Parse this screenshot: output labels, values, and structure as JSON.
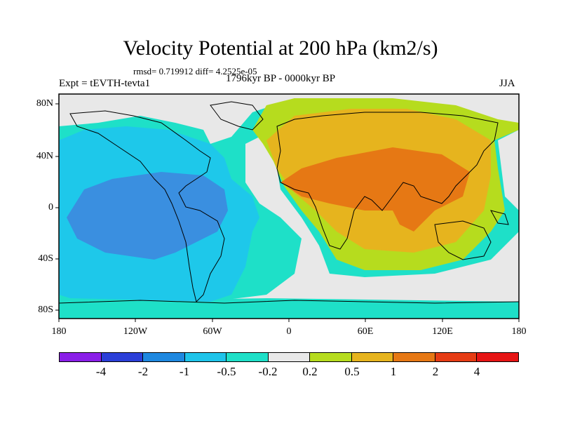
{
  "header": {
    "title": "Velocity Potential at 200 hPa (km2/s)",
    "stats": "rmsd= 0.719912 diff= 4.2525e-05",
    "experiment": "Expt = tEVTH-tevta1",
    "period": "1796kyr BP - 0000kyr BP",
    "season": "JJA"
  },
  "axes": {
    "y_ticks": [
      "80N",
      "40N",
      "0",
      "40S",
      "80S"
    ],
    "x_ticks": [
      "180",
      "120W",
      "60W",
      "0",
      "60E",
      "120E",
      "180"
    ]
  },
  "colorbar": {
    "labels": [
      "-4",
      "-2",
      "-1",
      "-0.5",
      "-0.2",
      "0.2",
      "0.5",
      "1",
      "2",
      "4"
    ],
    "colors": [
      "#8a1ee8",
      "#2b3fd8",
      "#1e88e0",
      "#1ec4ea",
      "#1ee0c8",
      "#e8e8e8",
      "#b6dc1e",
      "#e6b41e",
      "#e67814",
      "#e63c14",
      "#e61414"
    ]
  },
  "palette": {
    "strong_negative": "#3a8fe0",
    "negative": "#1ec8ea",
    "weak_negative": "#1ee0c8",
    "neutral": "#e8e8e8",
    "weak_positive": "#b6dc1e",
    "positive": "#e6b41e",
    "strong_positive": "#e67814"
  }
}
